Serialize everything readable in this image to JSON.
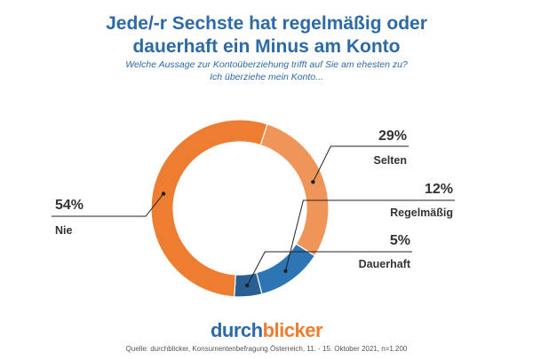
{
  "header": {
    "title_line1": "Jede/-r Sechste hat regelmäßig oder",
    "title_line2": "dauerhaft ein Minus am Konto",
    "subtitle_line1": "Welche Aussage zur Kontoüberziehung trifft auf Sie am ehesten zu?",
    "subtitle_line2": "Ich überziehe mein Konto..."
  },
  "chart_data": {
    "type": "pie",
    "donut": true,
    "legend": "none",
    "slices": [
      {
        "label": "Selten",
        "value": 29,
        "value_label": "29%",
        "color": "#f0955a"
      },
      {
        "label": "Regelmäßig",
        "value": 12,
        "value_label": "12%",
        "color": "#2e75b6"
      },
      {
        "label": "Dauerhaft",
        "value": 5,
        "value_label": "5%",
        "color": "#2a5f94"
      },
      {
        "label": "Nie",
        "value": 54,
        "value_label": "54%",
        "color": "#ed7d31"
      }
    ]
  },
  "footer": {
    "brand_part1": "durch",
    "brand_part2": "blicker",
    "source": "Quelle: durchblicker, Konsumentenbefragung Österreich, 11. - 15. Oktober 2021, n=1.200"
  }
}
